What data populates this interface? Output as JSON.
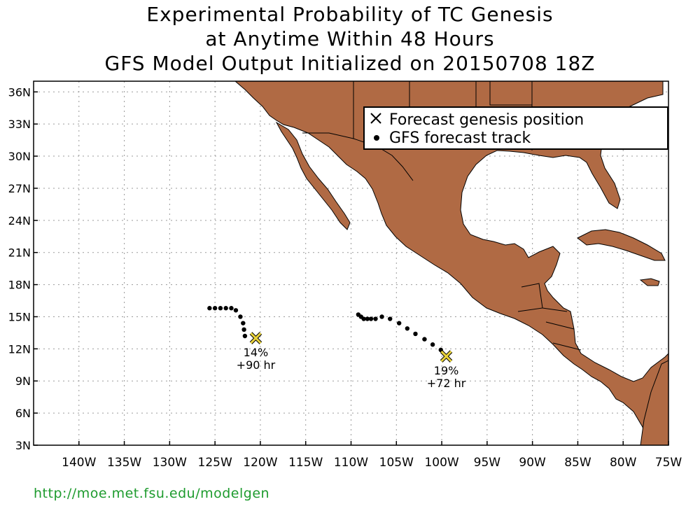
{
  "title": {
    "line1": "Experimental Probability of TC Genesis",
    "line2": "at Anytime Within 48 Hours",
    "line3": "GFS Model Output Initialized on 20150708 18Z"
  },
  "axes": {
    "lat_labels": [
      "36N",
      "33N",
      "30N",
      "27N",
      "24N",
      "21N",
      "18N",
      "15N",
      "12N",
      "9N",
      "6N",
      "3N"
    ],
    "lat_values": [
      36,
      33,
      30,
      27,
      24,
      21,
      18,
      15,
      12,
      9,
      6,
      3
    ],
    "lon_labels": [
      "140W",
      "135W",
      "130W",
      "125W",
      "120W",
      "115W",
      "110W",
      "105W",
      "100W",
      "95W",
      "90W",
      "85W",
      "80W",
      "75W"
    ],
    "lon_values": [
      -140,
      -135,
      -130,
      -125,
      -120,
      -115,
      -110,
      -105,
      -100,
      -95,
      -90,
      -85,
      -80,
      -75
    ],
    "lon_range": [
      -145,
      -75
    ],
    "lat_range": [
      3,
      37
    ]
  },
  "legend": {
    "genesis_label": "Forecast genesis position",
    "track_label": "GFS forecast track"
  },
  "genesis_points": [
    {
      "lon": -120.5,
      "lat": 13.0,
      "probability": "14%",
      "lead_time": "+90 hr"
    },
    {
      "lon": -99.5,
      "lat": 11.3,
      "probability": "19%",
      "lead_time": "+72 hr"
    }
  ],
  "tracks": [
    {
      "points": [
        [
          -125.6,
          15.8
        ],
        [
          -125.0,
          15.8
        ],
        [
          -124.4,
          15.8
        ],
        [
          -123.8,
          15.8
        ],
        [
          -123.2,
          15.8
        ],
        [
          -122.7,
          15.6
        ],
        [
          -122.2,
          15.0
        ],
        [
          -121.9,
          14.4
        ],
        [
          -121.8,
          13.8
        ],
        [
          -121.7,
          13.2
        ]
      ]
    },
    {
      "points": [
        [
          -109.2,
          15.2
        ],
        [
          -108.9,
          15.0
        ],
        [
          -108.6,
          14.8
        ],
        [
          -108.2,
          14.8
        ],
        [
          -107.8,
          14.8
        ],
        [
          -107.3,
          14.8
        ],
        [
          -106.6,
          15.0
        ],
        [
          -105.7,
          14.8
        ],
        [
          -104.7,
          14.4
        ],
        [
          -103.8,
          13.9
        ],
        [
          -102.9,
          13.4
        ],
        [
          -101.9,
          12.9
        ],
        [
          -101.0,
          12.4
        ],
        [
          -100.1,
          11.9
        ]
      ]
    }
  ],
  "colors": {
    "land": "#b06a44",
    "genesis_marker": "#e8d23a",
    "url": "#1e9b2e"
  },
  "footer": {
    "url": "http://moe.met.fsu.edu/modelgen"
  }
}
